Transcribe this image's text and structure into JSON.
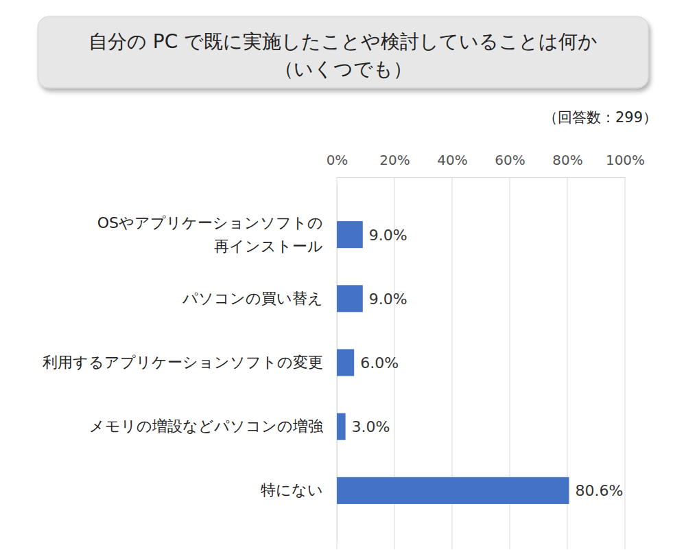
{
  "chart_data": {
    "type": "bar",
    "title": "自分の PC で既に実施したことや検討していることは何か",
    "subtitle": "（いくつでも）",
    "annotation": "（回答数：299）",
    "orientation": "horizontal",
    "categories": [
      "OSやアプリケーションソフトの\n再インストール",
      "パソコンの買い替え",
      "利用するアプリケーションソフトの変更",
      "メモリの増設などパソコンの増強",
      "特にない"
    ],
    "values": [
      9.0,
      9.0,
      6.0,
      3.0,
      80.6
    ],
    "value_labels": [
      "9.0%",
      "9.0%",
      "6.0%",
      "3.0%",
      "80.6%"
    ],
    "data_labels": true,
    "color": "#4472c4",
    "xlim": [
      0,
      100
    ],
    "xticks": [
      {
        "value": 0,
        "label": "0%"
      },
      {
        "value": 20,
        "label": "20%"
      },
      {
        "value": 40,
        "label": "40%"
      },
      {
        "value": 60,
        "label": "60%"
      },
      {
        "value": 80,
        "label": "80%"
      },
      {
        "value": 100,
        "label": "100%"
      }
    ],
    "grid": true
  }
}
